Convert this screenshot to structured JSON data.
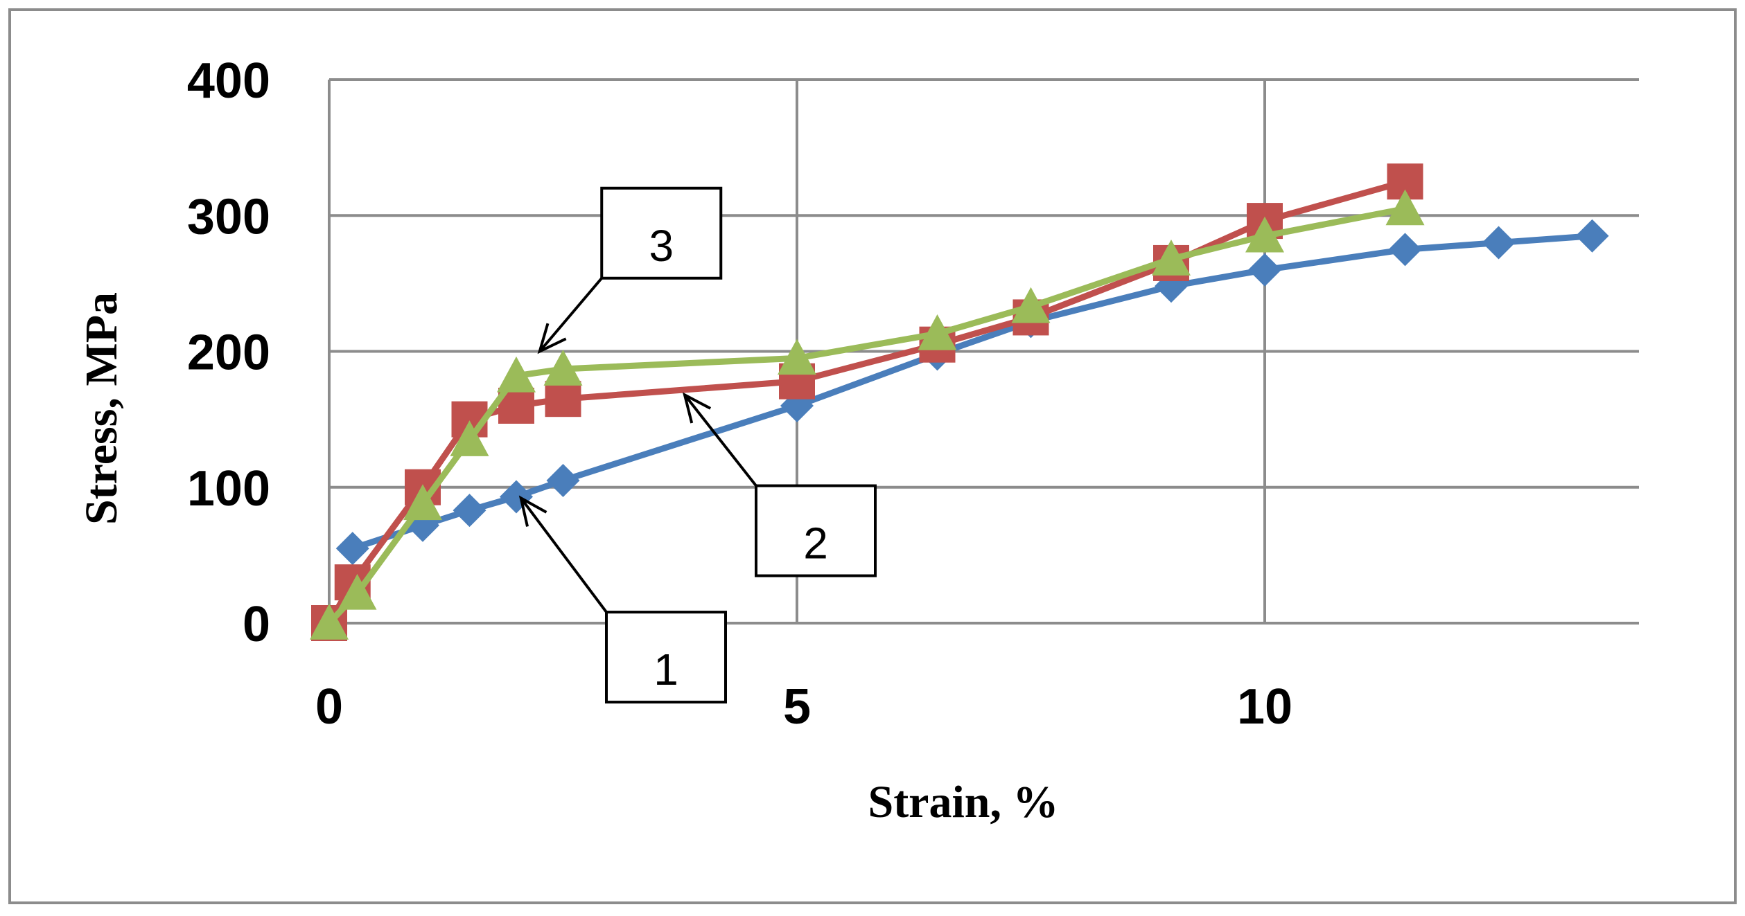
{
  "chart_data": {
    "type": "line",
    "title": "",
    "xlabel": "Strain, %",
    "ylabel": "Stress, MPa",
    "xlim": [
      0,
      14
    ],
    "ylim": [
      0,
      400
    ],
    "xticks": [
      "0",
      "5",
      "10"
    ],
    "yticks": [
      "0",
      "100",
      "200",
      "300",
      "400"
    ],
    "grid": true,
    "legend": "none",
    "series": [
      {
        "color": "#4A7EBB",
        "marker": "diamond",
        "points": [
          [
            0.25,
            55
          ],
          [
            1.0,
            72
          ],
          [
            1.5,
            83
          ],
          [
            2.0,
            93
          ],
          [
            2.5,
            105
          ],
          [
            5.0,
            160
          ],
          [
            6.5,
            198
          ],
          [
            7.5,
            222
          ],
          [
            9.0,
            248
          ],
          [
            10.0,
            260
          ],
          [
            11.5,
            275
          ],
          [
            12.5,
            280
          ],
          [
            13.5,
            285
          ]
        ]
      },
      {
        "color": "#C0504D",
        "marker": "square",
        "points": [
          [
            0.0,
            0
          ],
          [
            0.25,
            30
          ],
          [
            1.0,
            100
          ],
          [
            1.5,
            150
          ],
          [
            2.0,
            160
          ],
          [
            2.5,
            165
          ],
          [
            5.0,
            178
          ],
          [
            6.5,
            205
          ],
          [
            7.5,
            225
          ],
          [
            9.0,
            265
          ],
          [
            10.0,
            296
          ],
          [
            11.5,
            325
          ]
        ]
      },
      {
        "color": "#9BBB59",
        "marker": "triangle",
        "points": [
          [
            0.0,
            0
          ],
          [
            0.3,
            22
          ],
          [
            1.0,
            88
          ],
          [
            1.5,
            135
          ],
          [
            2.0,
            182
          ],
          [
            2.5,
            187
          ],
          [
            5.0,
            195
          ],
          [
            6.5,
            213
          ],
          [
            7.5,
            233
          ],
          [
            9.0,
            268
          ],
          [
            10.0,
            285
          ],
          [
            11.5,
            305
          ]
        ]
      }
    ],
    "annotations": [
      {
        "text": "1",
        "box_center": [
          3.6,
          -25
        ],
        "arrow_to": [
          2.05,
          92
        ]
      },
      {
        "text": "2",
        "box_center": [
          5.2,
          68
        ],
        "arrow_to": [
          3.8,
          168
        ]
      },
      {
        "text": "3",
        "box_center": [
          3.55,
          287
        ],
        "arrow_to": [
          2.25,
          200
        ]
      }
    ]
  }
}
